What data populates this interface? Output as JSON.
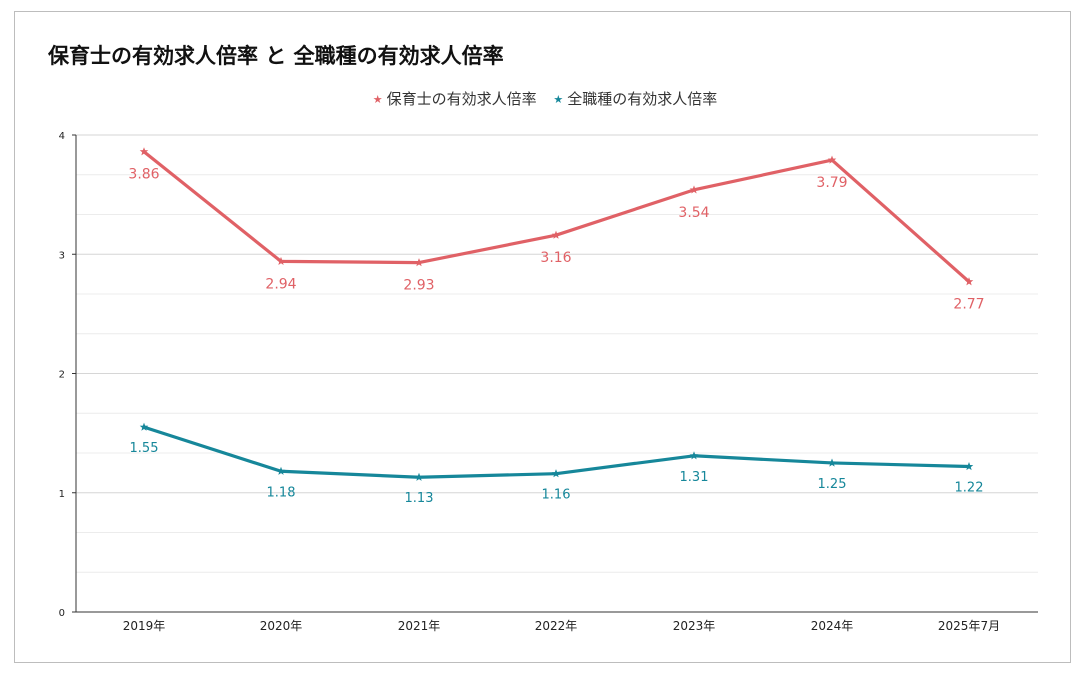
{
  "chart_data": {
    "type": "line",
    "title": "保育士の有効求人倍率 と 全職種の有効求人倍率",
    "categories": [
      "2019年",
      "2020年",
      "2021年",
      "2022年",
      "2023年",
      "2024年",
      "2025年7月"
    ],
    "ylim": [
      0,
      4
    ],
    "yticks": [
      "0",
      "1",
      "2",
      "3",
      "4"
    ],
    "grid": true,
    "legend_position": "top-center",
    "series": [
      {
        "name": "保育士の有効求人倍率",
        "color": "#e06166",
        "marker": "star",
        "values": [
          3.86,
          2.94,
          2.93,
          3.16,
          3.54,
          3.79,
          2.77
        ],
        "labels": [
          "3.86",
          "2.94",
          "2.93",
          "3.16",
          "3.54",
          "3.79",
          "2.77"
        ]
      },
      {
        "name": "全職種の有効求人倍率",
        "color": "#16879a",
        "marker": "star",
        "values": [
          1.55,
          1.18,
          1.13,
          1.16,
          1.31,
          1.25,
          1.22
        ],
        "labels": [
          "1.55",
          "1.18",
          "1.13",
          "1.16",
          "1.31",
          "1.25",
          "1.22"
        ]
      }
    ]
  }
}
